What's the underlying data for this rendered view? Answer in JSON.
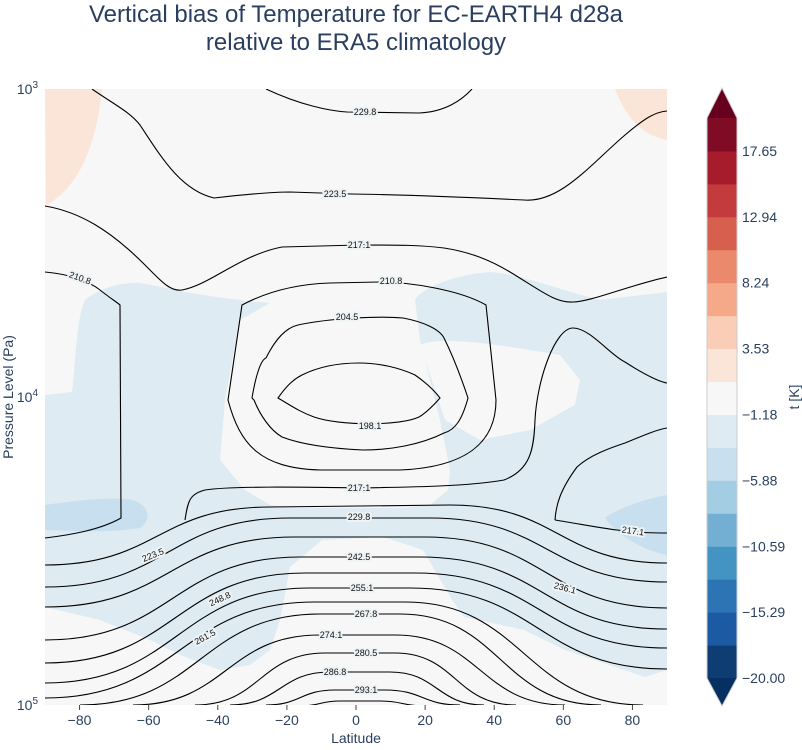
{
  "chart_data": {
    "type": "contour",
    "title_lines": [
      "Vertical bias of Temperature for EC-EARTH4 d28a",
      "relative to ERA5 climatology"
    ],
    "xlabel": "Latitude",
    "ylabel": "Pressure Level (Pa)",
    "xlim": [
      -90,
      90
    ],
    "ylim": [
      100000,
      1000
    ],
    "yscale": "log",
    "xticks": [
      "−80",
      "−60",
      "−40",
      "−20",
      "0",
      "20",
      "40",
      "60",
      "80"
    ],
    "xtick_values": [
      -80,
      -60,
      -40,
      -20,
      0,
      20,
      40,
      60,
      80
    ],
    "yticks": [
      {
        "base": "10",
        "exp": "3",
        "value": 1000
      },
      {
        "base": "10",
        "exp": "4",
        "value": 10000
      },
      {
        "base": "10",
        "exp": "5",
        "value": 100000
      }
    ],
    "colorbar": {
      "label": "t [K]",
      "range": [
        -20,
        20
      ],
      "extend": "both",
      "ticks": [
        "17.65",
        "12.94",
        "8.24",
        "3.53",
        "−1.18",
        "−5.88",
        "−10.59",
        "−15.29",
        "−20.00"
      ],
      "tick_values": [
        17.65,
        12.94,
        8.24,
        3.53,
        -1.18,
        -5.88,
        -10.59,
        -15.29,
        -20.0
      ],
      "colors": [
        "#0e3d73",
        "#1c5ba3",
        "#2c74b4",
        "#4393c3",
        "#73afd3",
        "#a2cde3",
        "#c7dfee",
        "#deebf2",
        "#f7f7f7",
        "#fbe5d8",
        "#f9cdb6",
        "#f5a988",
        "#eb896d",
        "#d6604d",
        "#c33b3c",
        "#a61c2c",
        "#7f0b24"
      ],
      "under_color": "#053061",
      "over_color": "#67001f"
    },
    "bias_field_colors": {
      "near_zero": "#f7f7f7",
      "slight_cool": "#deebf2",
      "cool": "#c7dfee",
      "slight_warm": "#fbe5d8"
    },
    "contour_labels": [
      "229.8",
      "223.5",
      "217.1",
      "210.8",
      "210.8",
      "204.5",
      "198.1",
      "217.1",
      "217.1",
      "229.8",
      "223.5",
      "242.5",
      "236.1",
      "248.8",
      "255.1",
      "261.5",
      "267.8",
      "274.1",
      "280.5",
      "286.8",
      "293.1"
    ]
  }
}
